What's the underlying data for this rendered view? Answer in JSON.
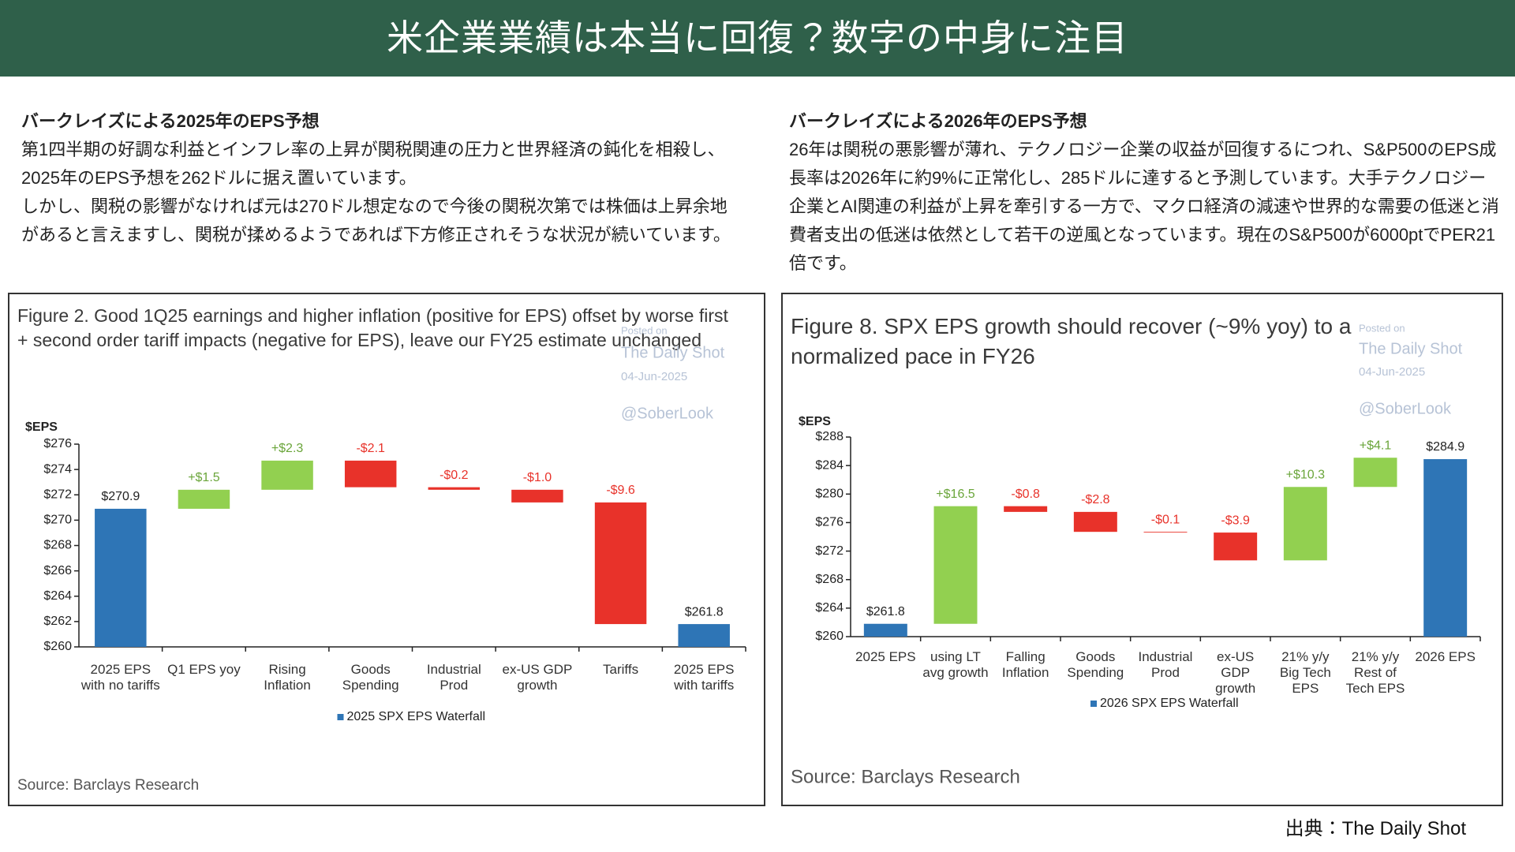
{
  "title": "米企業業績は本当に回復？数字の中身に注目",
  "sections": [
    {
      "heading": "バークレイズによる2025年のEPS予想",
      "paragraphs": [
        "第1四半期の好調な利益とインフレ率の上昇が関税関連の圧力と世界経済の鈍化を相殺し、2025年のEPS予想を262ドルに据え置いています。",
        "しかし、関税の影響がなければ元は270ドル想定なので今後の関税次第では株価は上昇余地があると言えますし、関税が揉めるようであれば下方修正されそうな状況が続いています。"
      ]
    },
    {
      "heading": "バークレイズによる2026年のEPS予想",
      "paragraphs": [
        "26年は関税の悪影響が薄れ、テクノロジー企業の収益が回復するにつれ、S&P500のEPS成長率は2026年に約9%に正常化し、285ドルに達すると予測しています。大手テクノロジー企業とAI関連の利益が上昇を牽引する一方で、マクロ経済の減速や世界的な需要の低迷と消費者支出の低迷は依然として若干の逆風となっています。現在のS&P500が6000ptでPER21倍です。"
      ]
    }
  ],
  "credit": "出典：The Daily Shot",
  "chart_data": [
    {
      "type": "waterfall",
      "title": "Figure 2. Good 1Q25 earnings and higher inflation (positive for EPS) offset by worse first + second order tariff impacts (negative for EPS), leave our FY25 estimate unchanged",
      "y_label": "$EPS",
      "source": "Source: Barclays Research",
      "watermark": [
        "Posted on",
        "The Daily Shot",
        "04-Jun-2025",
        "@SoberLook"
      ],
      "categories": [
        "2025 EPS with no tariffs",
        "Q1 EPS yoy",
        "Rising Inflation",
        "Goods Spending",
        "Industrial Prod",
        "ex-US GDP growth",
        "Tariffs",
        "2025 EPS with tariffs"
      ],
      "series": [
        {
          "name": "2025 SPX EPS Waterfall",
          "color": "#2e75b6",
          "increase_color": "#92d050",
          "decrease_color": "#e8322a",
          "measure": [
            "absolute",
            "relative",
            "relative",
            "relative",
            "relative",
            "relative",
            "relative",
            "absolute"
          ],
          "values": [
            270.9,
            1.5,
            2.3,
            -2.1,
            -0.2,
            -1.0,
            -9.6,
            261.8
          ],
          "value_labels": [
            "$270.9",
            "+$1.5",
            "+$2.3",
            "-$2.1",
            "-$0.2",
            "-$1.0",
            "-$9.6",
            "$261.8"
          ]
        }
      ],
      "ylim": [
        260,
        276
      ],
      "yticks": [
        {
          "value": 260,
          "label": "$260"
        },
        {
          "value": 262,
          "label": "$262"
        },
        {
          "value": 264,
          "label": "$264"
        },
        {
          "value": 266,
          "label": "$266"
        },
        {
          "value": 268,
          "label": "$268"
        },
        {
          "value": 270,
          "label": "$270"
        },
        {
          "value": 272,
          "label": "$272"
        },
        {
          "value": 274,
          "label": "$274"
        },
        {
          "value": 276,
          "label": "$276"
        }
      ],
      "legend": "bottom"
    },
    {
      "type": "waterfall",
      "title": "Figure 8. SPX EPS growth should recover (~9% yoy) to a normalized pace in FY26",
      "y_label": "$EPS",
      "source": "Source: Barclays Research",
      "watermark": [
        "Posted on",
        "The Daily Shot",
        "04-Jun-2025",
        "@SoberLook"
      ],
      "categories": [
        "2025 EPS",
        "using LT avg growth",
        "Falling Inflation",
        "Goods Spending",
        "Industrial Prod",
        "ex-US GDP growth",
        "21% y/y Big Tech EPS",
        "21% y/y Rest of Tech EPS",
        "2026 EPS"
      ],
      "series": [
        {
          "name": "2026 SPX EPS Waterfall",
          "color": "#2e75b6",
          "increase_color": "#92d050",
          "decrease_color": "#e8322a",
          "measure": [
            "absolute",
            "relative",
            "relative",
            "relative",
            "relative",
            "relative",
            "relative",
            "relative",
            "absolute"
          ],
          "values": [
            261.8,
            16.5,
            -0.8,
            -2.8,
            -0.1,
            -3.9,
            10.3,
            4.1,
            284.9
          ],
          "value_labels": [
            "$261.8",
            "+$16.5",
            "-$0.8",
            "-$2.8",
            "-$0.1",
            "-$3.9",
            "+$10.3",
            "+$4.1",
            "$284.9"
          ]
        }
      ],
      "ylim": [
        260,
        288
      ],
      "yticks": [
        {
          "value": 260,
          "label": "$260"
        },
        {
          "value": 264,
          "label": "$264"
        },
        {
          "value": 268,
          "label": "$268"
        },
        {
          "value": 272,
          "label": "$272"
        },
        {
          "value": 276,
          "label": "$276"
        },
        {
          "value": 280,
          "label": "$280"
        },
        {
          "value": 284,
          "label": "$284"
        },
        {
          "value": 288,
          "label": "$288"
        }
      ],
      "legend": "bottom"
    }
  ]
}
